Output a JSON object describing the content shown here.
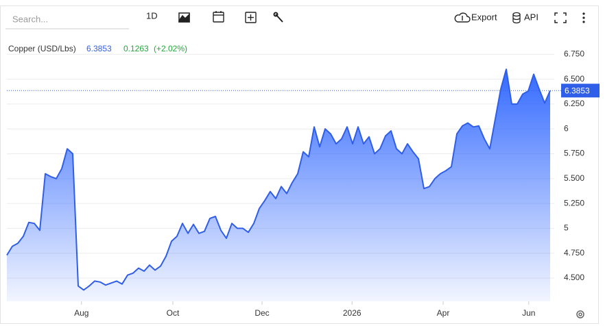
{
  "toolbar": {
    "search_placeholder": "Search...",
    "interval": "1D",
    "export": "Export",
    "api": "API"
  },
  "chart_data": {
    "type": "line",
    "title": "Copper (USD/Lbs)",
    "last_price": {
      "value": 6.3853,
      "label": "6.3853"
    },
    "change": 0.1263,
    "change_label": "(+2.02%)",
    "color": "#2f5ee8",
    "values": [
      4.73,
      4.82,
      4.85,
      4.92,
      5.06,
      5.05,
      4.98,
      5.55,
      5.52,
      5.5,
      5.6,
      5.8,
      5.75,
      4.42,
      4.38,
      4.42,
      4.47,
      4.46,
      4.43,
      4.45,
      4.47,
      4.44,
      4.53,
      4.55,
      4.6,
      4.57,
      4.63,
      4.58,
      4.62,
      4.72,
      4.87,
      4.92,
      5.05,
      4.95,
      5.04,
      4.95,
      4.97,
      5.1,
      5.12,
      4.98,
      4.9,
      5.05,
      5.0,
      5.0,
      4.96,
      5.05,
      5.2,
      5.28,
      5.37,
      5.3,
      5.42,
      5.35,
      5.46,
      5.55,
      5.77,
      5.72,
      6.02,
      5.82,
      6.0,
      5.95,
      5.85,
      5.9,
      6.02,
      5.85,
      6.02,
      5.85,
      5.92,
      5.75,
      5.8,
      5.93,
      5.98,
      5.8,
      5.75,
      5.85,
      5.77,
      5.7,
      5.4,
      5.42,
      5.5,
      5.55,
      5.58,
      5.62,
      5.95,
      6.03,
      6.06,
      6.02,
      6.03,
      5.9,
      5.8,
      6.1,
      6.4,
      6.6,
      6.25,
      6.25,
      6.35,
      6.38,
      6.55,
      6.4,
      6.26,
      6.3853
    ],
    "xlim": [
      0,
      99
    ],
    "xticks": [
      {
        "value": 13.6,
        "label": "Aug"
      },
      {
        "value": 30.25,
        "label": "Oct"
      },
      {
        "value": 46.5,
        "label": "Dec"
      },
      {
        "value": 62.9,
        "label": "2026"
      },
      {
        "value": 79.5,
        "label": "Apr"
      },
      {
        "value": 95.1,
        "label": "Jun"
      }
    ],
    "ylim": [
      4.266,
      6.883
    ],
    "yticks": [
      {
        "value": 4.5,
        "label": "4.500"
      },
      {
        "value": 4.75,
        "label": "4.750"
      },
      5,
      {
        "value": 5.25,
        "label": "5.250"
      },
      {
        "value": 5.5,
        "label": "5.500"
      },
      {
        "value": 5.75,
        "label": "5.750"
      },
      6,
      {
        "value": 6.25,
        "label": "6.250"
      },
      {
        "value": 6.5,
        "label": "6.500"
      },
      {
        "value": 6.75,
        "label": "6.750"
      }
    ],
    "grid": true
  }
}
